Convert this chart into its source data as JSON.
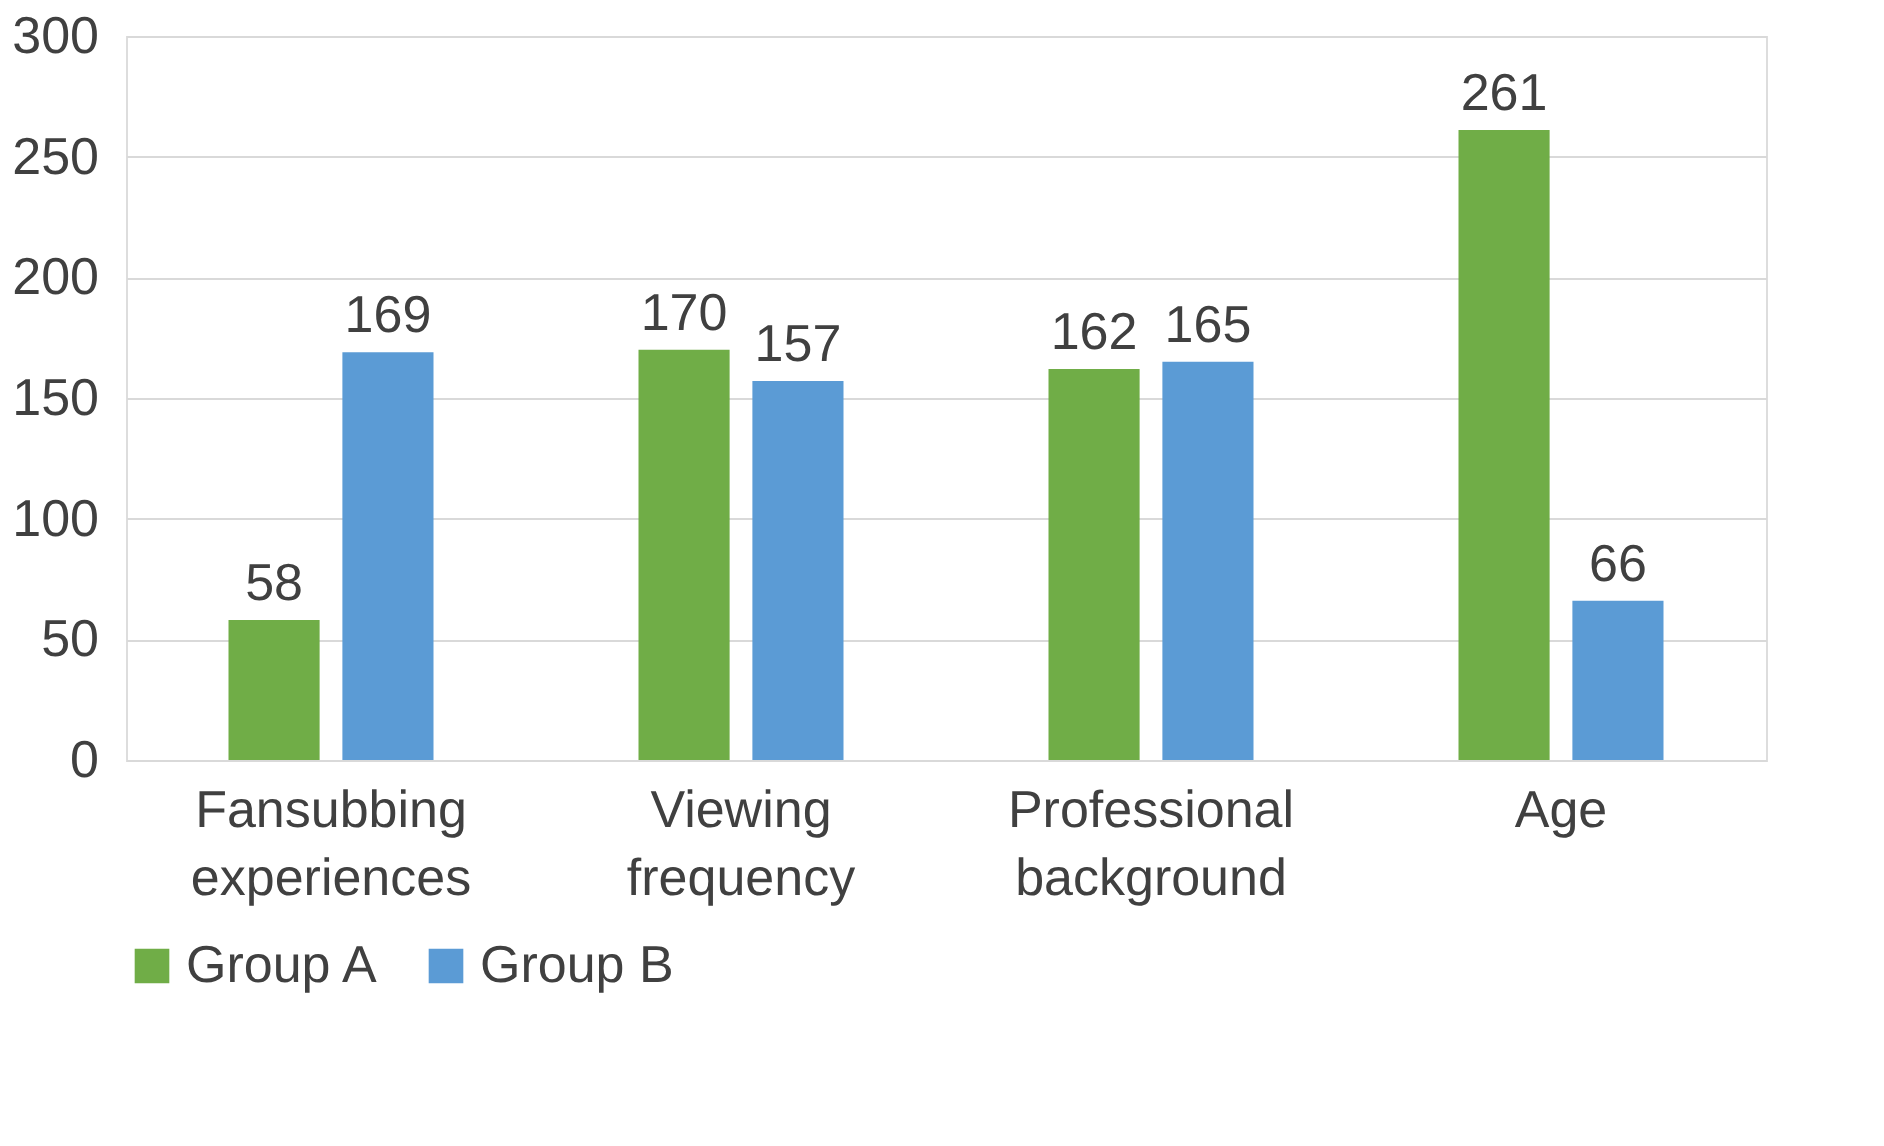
{
  "chart_data": {
    "type": "bar",
    "categories": [
      "Fansubbing experiences",
      "Viewing frequency",
      "Professional background",
      "Age"
    ],
    "series": [
      {
        "name": "Group A",
        "color": "#70ad47",
        "values": [
          58,
          170,
          162,
          261
        ]
      },
      {
        "name": "Group B",
        "color": "#5b9bd5",
        "values": [
          169,
          157,
          165,
          66
        ]
      }
    ],
    "ylim": [
      0,
      300
    ],
    "yticks": [
      0,
      50,
      100,
      150,
      200,
      250,
      300
    ],
    "grid": "y",
    "legend": "bottom",
    "data_labels": true
  }
}
